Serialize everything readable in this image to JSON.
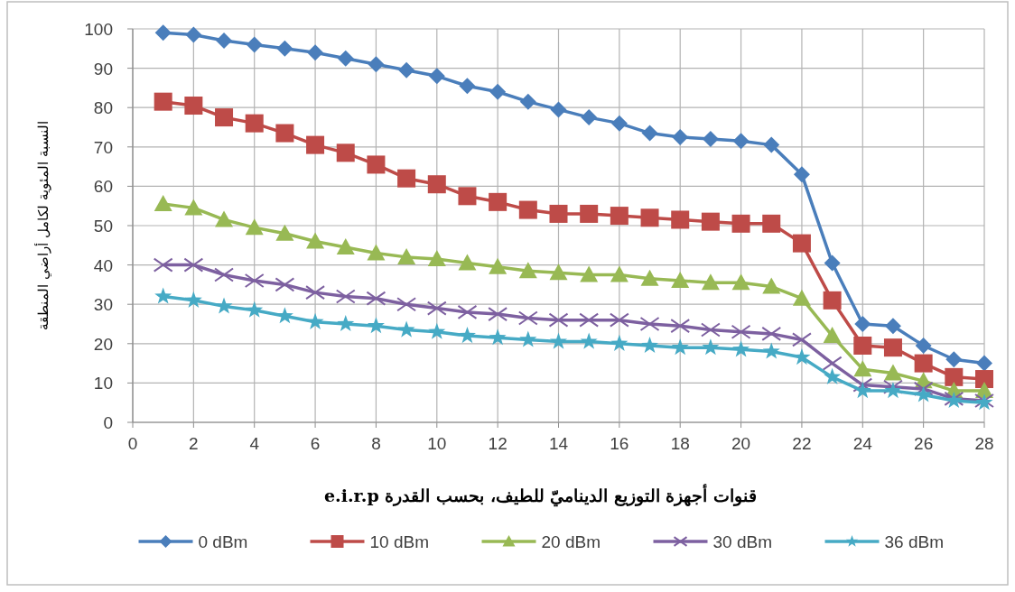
{
  "chart_data": {
    "type": "line",
    "xlabel": "قنوات أجهزة التوزيع الديناميّ للطيف، بحسب القدرة e.i.r.p",
    "ylabel": "النسبة المئوية لكامل أراضي المنطقة",
    "x": [
      1,
      2,
      3,
      4,
      5,
      6,
      7,
      8,
      9,
      10,
      11,
      12,
      13,
      14,
      15,
      16,
      17,
      18,
      19,
      20,
      21,
      22,
      23,
      24,
      25,
      26,
      27,
      28
    ],
    "series": [
      {
        "name": "0 dBm",
        "color": "#4a7ebb",
        "marker": "diamond",
        "values": [
          99,
          98.5,
          97,
          96,
          95,
          94,
          92.5,
          91,
          89.5,
          88,
          85.5,
          84,
          81.5,
          79.5,
          77.5,
          76,
          73.5,
          72.5,
          72,
          71.5,
          70.5,
          63,
          40.5,
          25,
          24.5,
          19.5,
          16,
          15
        ]
      },
      {
        "name": "10 dBm",
        "color": "#be4b48",
        "marker": "square",
        "values": [
          81.5,
          80.5,
          77.5,
          76,
          73.5,
          70.5,
          68.5,
          65.5,
          62,
          60.5,
          57.5,
          56,
          54,
          53,
          53,
          52.5,
          52,
          51.5,
          51,
          50.5,
          50.5,
          45.5,
          31,
          19.5,
          19,
          15,
          11.5,
          11
        ]
      },
      {
        "name": "20 dBm",
        "color": "#98b954",
        "marker": "triangle",
        "values": [
          55.5,
          54.5,
          51.5,
          49.5,
          48,
          46,
          44.5,
          43,
          42,
          41.5,
          40.5,
          39.5,
          38.5,
          38,
          37.5,
          37.5,
          36.5,
          36,
          35.5,
          35.5,
          34.5,
          31.5,
          22,
          13.5,
          12.5,
          10.5,
          8,
          8
        ]
      },
      {
        "name": "30 dBm",
        "color": "#7d60a0",
        "marker": "cross",
        "values": [
          40,
          40,
          37.5,
          36,
          35,
          33,
          32,
          31.5,
          30,
          29,
          28,
          27.5,
          26.5,
          26,
          26,
          26,
          25,
          24.5,
          23.5,
          23,
          22.5,
          21,
          15,
          9.5,
          9,
          8.5,
          6,
          5.5
        ]
      },
      {
        "name": "36 dBm",
        "color": "#46aac5",
        "marker": "star",
        "values": [
          32,
          31,
          29.5,
          28.5,
          27,
          25.5,
          25,
          24.5,
          23.5,
          23,
          22,
          21.5,
          21,
          20.5,
          20.5,
          20,
          19.5,
          19,
          19,
          18.5,
          18,
          16.5,
          11.5,
          8,
          8,
          7,
          5.5,
          5
        ]
      }
    ],
    "xlim": [
      0,
      28
    ],
    "xticks": [
      0,
      2,
      4,
      6,
      8,
      10,
      12,
      14,
      16,
      18,
      20,
      22,
      24,
      26,
      28
    ],
    "ylim": [
      0,
      100
    ],
    "yticks": [
      0,
      10,
      20,
      30,
      40,
      50,
      60,
      70,
      80,
      90,
      100
    ],
    "grid": true,
    "legend": "bottom"
  }
}
